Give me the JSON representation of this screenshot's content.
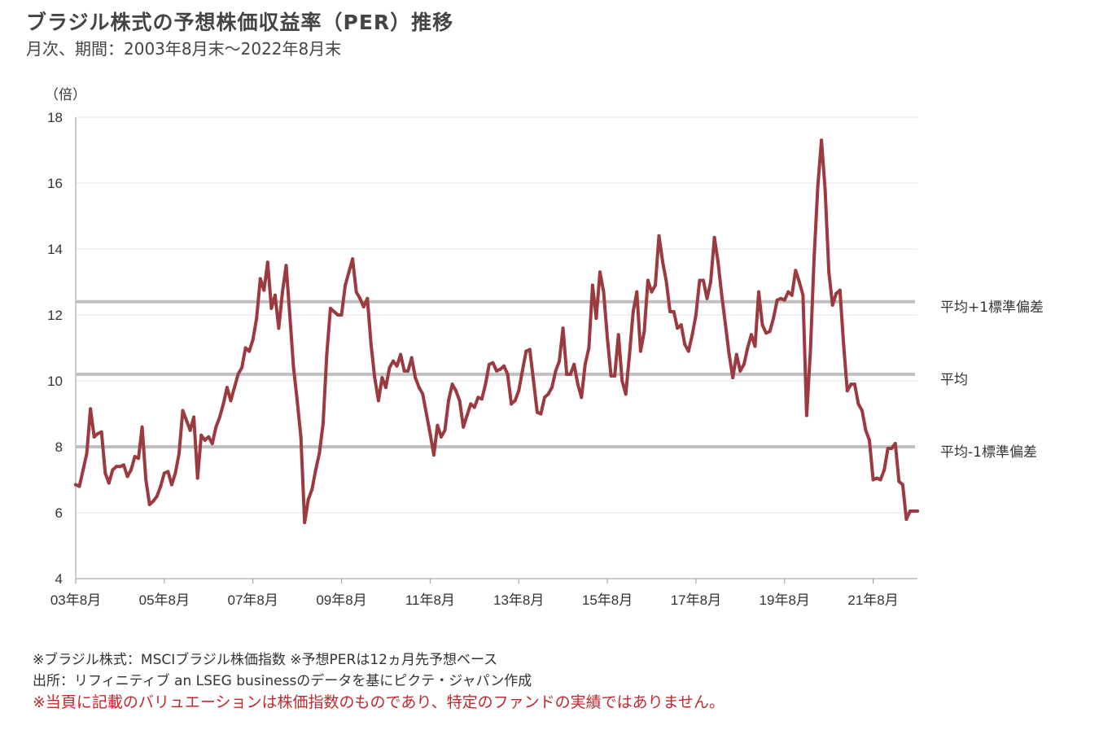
{
  "title": "ブラジル株式の予想株価収益率（PER）推移",
  "subtitle": "月次、期間：2003年8月末～2022年8月末",
  "notes": {
    "line1": "※ブラジル株式：MSCIブラジル株価指数 ※予想PERは12ヵ月先予想ベース",
    "line2": "出所：リフィニティブ an LSEG businessのデータを基にピクテ・ジャパン作成",
    "warning": "※当頁に記載のバリュエーションは株価指数のものであり、特定のファンドの実績ではありません。"
  },
  "colors": {
    "line": "#9b3a3f",
    "reference": "#c0c0c0",
    "grid": "#e6e6e6",
    "axis": "#999999",
    "warning": "#c0282d"
  },
  "chart_data": {
    "type": "line",
    "ylabel": "（倍）",
    "ylim": [
      4,
      18
    ],
    "yticks": [
      4,
      6,
      8,
      10,
      12,
      14,
      16,
      18
    ],
    "xlim": [
      "2003-08",
      "2022-08"
    ],
    "xticks": [
      "03年8月",
      "05年8月",
      "07年8月",
      "09年8月",
      "11年8月",
      "13年8月",
      "15年8月",
      "17年8月",
      "19年8月",
      "21年8月"
    ],
    "grid": true,
    "reference_lines": [
      {
        "label": "平均+1標準偏差",
        "value": 12.4
      },
      {
        "label": "平均",
        "value": 10.2
      },
      {
        "label": "平均-1標準偏差",
        "value": 8.0
      }
    ],
    "series": [
      {
        "values": [
          [
            "2003-08",
            6.85
          ],
          [
            "2003-09",
            6.8
          ],
          [
            "2003-10",
            7.3
          ],
          [
            "2003-11",
            7.8
          ],
          [
            "2003-12",
            9.15
          ],
          [
            "2004-01",
            8.3
          ],
          [
            "2004-02",
            8.4
          ],
          [
            "2004-03",
            8.45
          ],
          [
            "2004-04",
            7.2
          ],
          [
            "2004-05",
            6.9
          ],
          [
            "2004-06",
            7.3
          ],
          [
            "2004-07",
            7.4
          ],
          [
            "2004-08",
            7.4
          ],
          [
            "2004-09",
            7.45
          ],
          [
            "2004-10",
            7.1
          ],
          [
            "2004-11",
            7.3
          ],
          [
            "2004-12",
            7.7
          ],
          [
            "2005-01",
            7.65
          ],
          [
            "2005-02",
            8.6
          ],
          [
            "2005-03",
            7.0
          ],
          [
            "2005-04",
            6.25
          ],
          [
            "2005-05",
            6.35
          ],
          [
            "2005-06",
            6.5
          ],
          [
            "2005-07",
            6.8
          ],
          [
            "2005-08",
            7.2
          ],
          [
            "2005-09",
            7.25
          ],
          [
            "2005-10",
            6.85
          ],
          [
            "2005-11",
            7.2
          ],
          [
            "2005-12",
            7.8
          ],
          [
            "2006-01",
            9.1
          ],
          [
            "2006-02",
            8.8
          ],
          [
            "2006-03",
            8.5
          ],
          [
            "2006-04",
            8.9
          ],
          [
            "2006-05",
            7.05
          ],
          [
            "2006-06",
            8.35
          ],
          [
            "2006-07",
            8.2
          ],
          [
            "2006-08",
            8.3
          ],
          [
            "2006-09",
            8.1
          ],
          [
            "2006-10",
            8.6
          ],
          [
            "2006-11",
            8.9
          ],
          [
            "2006-12",
            9.3
          ],
          [
            "2007-01",
            9.8
          ],
          [
            "2007-02",
            9.4
          ],
          [
            "2007-03",
            9.8
          ],
          [
            "2007-04",
            10.2
          ],
          [
            "2007-05",
            10.4
          ],
          [
            "2007-06",
            11.0
          ],
          [
            "2007-07",
            10.9
          ],
          [
            "2007-08",
            11.25
          ],
          [
            "2007-09",
            11.9
          ],
          [
            "2007-10",
            13.1
          ],
          [
            "2007-11",
            12.75
          ],
          [
            "2007-12",
            13.6
          ],
          [
            "2008-01",
            12.2
          ],
          [
            "2008-02",
            12.6
          ],
          [
            "2008-03",
            11.6
          ],
          [
            "2008-04",
            12.7
          ],
          [
            "2008-05",
            13.5
          ],
          [
            "2008-06",
            12.0
          ],
          [
            "2008-07",
            10.4
          ],
          [
            "2008-08",
            9.4
          ],
          [
            "2008-09",
            8.3
          ],
          [
            "2008-10",
            5.7
          ],
          [
            "2008-11",
            6.4
          ],
          [
            "2008-12",
            6.7
          ],
          [
            "2009-01",
            7.3
          ],
          [
            "2009-02",
            7.8
          ],
          [
            "2009-03",
            8.7
          ],
          [
            "2009-04",
            10.8
          ],
          [
            "2009-05",
            12.2
          ],
          [
            "2009-06",
            12.1
          ],
          [
            "2009-07",
            12.0
          ],
          [
            "2009-08",
            12.0
          ],
          [
            "2009-09",
            12.9
          ],
          [
            "2009-10",
            13.3
          ],
          [
            "2009-11",
            13.7
          ],
          [
            "2009-12",
            12.7
          ],
          [
            "2010-01",
            12.5
          ],
          [
            "2010-02",
            12.25
          ],
          [
            "2010-03",
            12.5
          ],
          [
            "2010-04",
            11.1
          ],
          [
            "2010-05",
            10.1
          ],
          [
            "2010-06",
            9.4
          ],
          [
            "2010-07",
            10.1
          ],
          [
            "2010-08",
            9.8
          ],
          [
            "2010-09",
            10.4
          ],
          [
            "2010-10",
            10.6
          ],
          [
            "2010-11",
            10.45
          ],
          [
            "2010-12",
            10.8
          ],
          [
            "2011-01",
            10.3
          ],
          [
            "2011-02",
            10.3
          ],
          [
            "2011-03",
            10.7
          ],
          [
            "2011-04",
            10.1
          ],
          [
            "2011-05",
            9.8
          ],
          [
            "2011-06",
            9.6
          ],
          [
            "2011-07",
            9.0
          ],
          [
            "2011-08",
            8.4
          ],
          [
            "2011-09",
            7.75
          ],
          [
            "2011-10",
            8.65
          ],
          [
            "2011-11",
            8.3
          ],
          [
            "2011-12",
            8.5
          ],
          [
            "2012-01",
            9.4
          ],
          [
            "2012-02",
            9.9
          ],
          [
            "2012-03",
            9.7
          ],
          [
            "2012-04",
            9.4
          ],
          [
            "2012-05",
            8.6
          ],
          [
            "2012-06",
            8.95
          ],
          [
            "2012-07",
            9.3
          ],
          [
            "2012-08",
            9.2
          ],
          [
            "2012-09",
            9.5
          ],
          [
            "2012-10",
            9.45
          ],
          [
            "2012-11",
            9.9
          ],
          [
            "2012-12",
            10.5
          ],
          [
            "2013-01",
            10.55
          ],
          [
            "2013-02",
            10.3
          ],
          [
            "2013-03",
            10.35
          ],
          [
            "2013-04",
            10.45
          ],
          [
            "2013-05",
            10.2
          ],
          [
            "2013-06",
            9.3
          ],
          [
            "2013-07",
            9.4
          ],
          [
            "2013-08",
            9.7
          ],
          [
            "2013-09",
            10.3
          ],
          [
            "2013-10",
            10.9
          ],
          [
            "2013-11",
            10.95
          ],
          [
            "2013-12",
            10.0
          ],
          [
            "2014-01",
            9.05
          ],
          [
            "2014-02",
            9.0
          ],
          [
            "2014-03",
            9.5
          ],
          [
            "2014-04",
            9.6
          ],
          [
            "2014-05",
            9.8
          ],
          [
            "2014-06",
            10.3
          ],
          [
            "2014-07",
            10.6
          ],
          [
            "2014-08",
            11.6
          ],
          [
            "2014-09",
            10.2
          ],
          [
            "2014-10",
            10.2
          ],
          [
            "2014-11",
            10.5
          ],
          [
            "2014-12",
            9.9
          ],
          [
            "2015-01",
            9.5
          ],
          [
            "2015-02",
            10.5
          ],
          [
            "2015-03",
            11.0
          ],
          [
            "2015-04",
            12.9
          ],
          [
            "2015-05",
            11.9
          ],
          [
            "2015-06",
            13.3
          ],
          [
            "2015-07",
            12.7
          ],
          [
            "2015-08",
            11.3
          ],
          [
            "2015-09",
            10.15
          ],
          [
            "2015-10",
            10.15
          ],
          [
            "2015-11",
            11.4
          ],
          [
            "2015-12",
            10.0
          ],
          [
            "2016-01",
            9.6
          ],
          [
            "2016-02",
            10.8
          ],
          [
            "2016-03",
            12.1
          ],
          [
            "2016-04",
            12.7
          ],
          [
            "2016-05",
            10.9
          ],
          [
            "2016-06",
            11.5
          ],
          [
            "2016-07",
            13.05
          ],
          [
            "2016-08",
            12.7
          ],
          [
            "2016-09",
            12.9
          ],
          [
            "2016-10",
            14.4
          ],
          [
            "2016-11",
            13.6
          ],
          [
            "2016-12",
            13.0
          ],
          [
            "2017-01",
            12.1
          ],
          [
            "2017-02",
            12.1
          ],
          [
            "2017-03",
            11.6
          ],
          [
            "2017-04",
            11.7
          ],
          [
            "2017-05",
            11.1
          ],
          [
            "2017-06",
            10.9
          ],
          [
            "2017-07",
            11.4
          ],
          [
            "2017-08",
            12.0
          ],
          [
            "2017-09",
            13.05
          ],
          [
            "2017-10",
            13.05
          ],
          [
            "2017-11",
            12.5
          ],
          [
            "2017-12",
            13.0
          ],
          [
            "2018-01",
            14.35
          ],
          [
            "2018-02",
            13.6
          ],
          [
            "2018-03",
            12.6
          ],
          [
            "2018-04",
            11.7
          ],
          [
            "2018-05",
            10.8
          ],
          [
            "2018-06",
            10.1
          ],
          [
            "2018-07",
            10.8
          ],
          [
            "2018-08",
            10.3
          ],
          [
            "2018-09",
            10.5
          ],
          [
            "2018-10",
            11.0
          ],
          [
            "2018-11",
            11.4
          ],
          [
            "2018-12",
            11.05
          ],
          [
            "2019-01",
            12.7
          ],
          [
            "2019-02",
            11.7
          ],
          [
            "2019-03",
            11.45
          ],
          [
            "2019-04",
            11.5
          ],
          [
            "2019-05",
            11.9
          ],
          [
            "2019-06",
            12.45
          ],
          [
            "2019-07",
            12.5
          ],
          [
            "2019-08",
            12.45
          ],
          [
            "2019-09",
            12.7
          ],
          [
            "2019-10",
            12.6
          ],
          [
            "2019-11",
            13.35
          ],
          [
            "2019-12",
            13.0
          ],
          [
            "2020-01",
            12.6
          ],
          [
            "2020-02",
            8.95
          ],
          [
            "2020-03",
            10.9
          ],
          [
            "2020-04",
            13.7
          ],
          [
            "2020-05",
            15.9
          ],
          [
            "2020-06",
            17.3
          ],
          [
            "2020-07",
            15.8
          ],
          [
            "2020-08",
            13.3
          ],
          [
            "2020-09",
            12.3
          ],
          [
            "2020-10",
            12.65
          ],
          [
            "2020-11",
            12.75
          ],
          [
            "2020-12",
            11.1
          ],
          [
            "2021-01",
            9.7
          ],
          [
            "2021-02",
            9.9
          ],
          [
            "2021-03",
            9.9
          ],
          [
            "2021-04",
            9.3
          ],
          [
            "2021-05",
            9.1
          ],
          [
            "2021-06",
            8.5
          ],
          [
            "2021-07",
            8.2
          ],
          [
            "2021-08",
            7.0
          ],
          [
            "2021-09",
            7.05
          ],
          [
            "2021-10",
            7.0
          ],
          [
            "2021-11",
            7.3
          ],
          [
            "2021-12",
            7.95
          ],
          [
            "2022-01",
            7.95
          ],
          [
            "2022-02",
            8.1
          ],
          [
            "2022-03",
            6.95
          ],
          [
            "2022-04",
            6.85
          ],
          [
            "2022-05",
            5.8
          ],
          [
            "2022-06",
            6.05
          ],
          [
            "2022-07",
            6.05
          ],
          [
            "2022-08",
            6.05
          ]
        ]
      }
    ]
  }
}
